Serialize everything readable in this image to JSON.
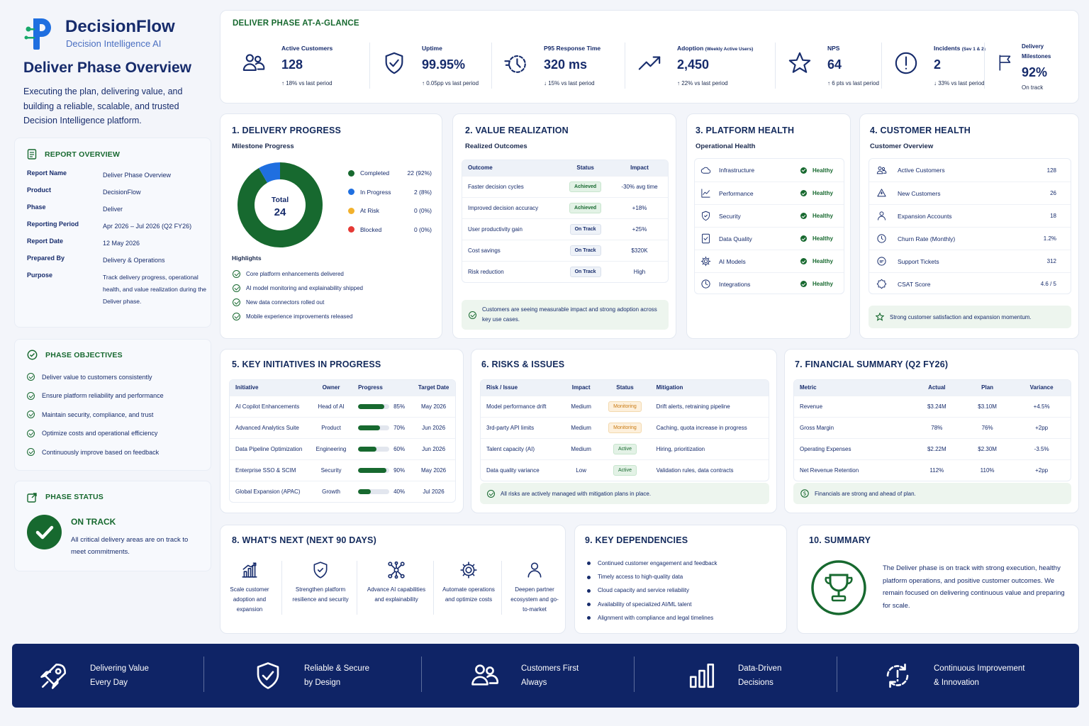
{
  "brand": {
    "name": "DecisionFlow",
    "tagline": "Decision Intelligence AI"
  },
  "page": {
    "title": "Deliver Phase Overview",
    "description": "Executing the plan, delivering value, and building a reliable, scalable, and trusted Decision Intelligence platform."
  },
  "report_overview": {
    "title": "REPORT OVERVIEW",
    "rows": [
      {
        "label": "Report Name",
        "value": "Deliver Phase Overview"
      },
      {
        "label": "Product",
        "value": "DecisionFlow"
      },
      {
        "label": "Phase",
        "value": "Deliver"
      },
      {
        "label": "Reporting Period",
        "value": "Apr 2026 – Jul 2026 (Q2 FY26)"
      },
      {
        "label": "Report Date",
        "value": "12 May 2026"
      },
      {
        "label": "Prepared By",
        "value": "Delivery & Operations"
      },
      {
        "label": "Purpose",
        "value": "Track delivery progress, operational health, and value realization during the Deliver phase."
      }
    ]
  },
  "phase_objectives": {
    "title": "PHASE OBJECTIVES",
    "items": [
      "Deliver value to customers consistently",
      "Ensure platform reliability and performance",
      "Maintain security, compliance, and trust",
      "Optimize costs and operational efficiency",
      "Continuously improve based on feedback"
    ]
  },
  "phase_status": {
    "title": "PHASE STATUS",
    "status": "ON TRACK",
    "text": "All critical delivery areas are on track to meet commitments."
  },
  "glance": {
    "title": "DELIVER PHASE AT-A-GLANCE",
    "kpis": [
      {
        "label": "Active Customers",
        "value": "128",
        "change": "18% vs last period",
        "dir": "up",
        "icon": "users-icon"
      },
      {
        "label": "Uptime",
        "value": "99.95%",
        "change": "0.05pp vs last period",
        "dir": "up",
        "icon": "shield-check-icon"
      },
      {
        "label": "P95 Response Time",
        "value": "320 ms",
        "change": "15% vs last period",
        "dir": "down",
        "icon": "timer-icon"
      },
      {
        "label": "Adoption",
        "label_small": "(Weekly Active Users)",
        "value": "2,450",
        "change": "22% vs last period",
        "dir": "up",
        "icon": "trend-up-icon"
      },
      {
        "label": "NPS",
        "value": "64",
        "change": "6 pts vs last period",
        "dir": "up",
        "icon": "star-icon"
      },
      {
        "label": "Incidents",
        "label_small": "(Sev 1 & 2)",
        "value": "2",
        "change": "33% vs last period",
        "dir": "down",
        "icon": "alert-icon"
      },
      {
        "label": "Delivery Milestones",
        "value": "92%",
        "change": "On track",
        "dir": "",
        "icon": "flag-icon"
      }
    ]
  },
  "delivery_progress": {
    "title": "1. DELIVERY PROGRESS",
    "subtitle": "Milestone Progress",
    "total_label": "Total",
    "total_value": "24",
    "legend": [
      {
        "label": "Completed",
        "value": "22 (92%)",
        "color": "#17692f",
        "count": 22
      },
      {
        "label": "In Progress",
        "value": "2 (8%)",
        "color": "#1f6fe0",
        "count": 2
      },
      {
        "label": "At Risk",
        "value": "0 (0%)",
        "color": "#f2b12c",
        "count": 0
      },
      {
        "label": "Blocked",
        "value": "0 (0%)",
        "color": "#e53935",
        "count": 0
      }
    ],
    "highlights_title": "Highlights",
    "highlights": [
      "Core platform enhancements delivered",
      "AI model monitoring and explainability shipped",
      "New data connectors rolled out",
      "Mobile experience improvements released"
    ]
  },
  "value_realization": {
    "title": "2. VALUE REALIZATION",
    "subtitle": "Realized Outcomes",
    "headers": [
      "Outcome",
      "Status",
      "Impact"
    ],
    "rows": [
      {
        "outcome": "Faster decision cycles",
        "status": "Achieved",
        "impact": "-30% avg time"
      },
      {
        "outcome": "Improved decision accuracy",
        "status": "Achieved",
        "impact": "+18%"
      },
      {
        "outcome": "User productivity gain",
        "status": "On Track",
        "impact": "+25%"
      },
      {
        "outcome": "Cost savings",
        "status": "On Track",
        "impact": "$320K"
      },
      {
        "outcome": "Risk reduction",
        "status": "On Track",
        "impact": "High"
      }
    ],
    "note": "Customers are seeing measurable impact and strong adoption across key use cases."
  },
  "platform_health": {
    "title": "3. PLATFORM HEALTH",
    "subtitle": "Operational Health",
    "items": [
      {
        "label": "Infrastructure",
        "status": "Healthy",
        "icon": "cloud-icon"
      },
      {
        "label": "Performance",
        "status": "Healthy",
        "icon": "chart-line-icon"
      },
      {
        "label": "Security",
        "status": "Healthy",
        "icon": "shield-icon"
      },
      {
        "label": "Data Quality",
        "status": "Healthy",
        "icon": "document-check-icon"
      },
      {
        "label": "AI Models",
        "status": "Healthy",
        "icon": "gear-icon"
      },
      {
        "label": "Integrations",
        "status": "Healthy",
        "icon": "integration-icon"
      }
    ]
  },
  "customer_health": {
    "title": "4. CUSTOMER HEALTH",
    "subtitle": "Customer Overview",
    "items": [
      {
        "label": "Active Customers",
        "value": "128",
        "icon": "users-icon"
      },
      {
        "label": "New Customers",
        "value": "26",
        "icon": "user-plus-icon"
      },
      {
        "label": "Expansion Accounts",
        "value": "18",
        "icon": "user-icon"
      },
      {
        "label": "Churn Rate (Monthly)",
        "value": "1.2%",
        "icon": "clock-icon"
      },
      {
        "label": "Support Tickets",
        "value": "312",
        "icon": "chat-icon"
      },
      {
        "label": "CSAT Score",
        "value": "4.6 / 5",
        "icon": "badge-icon"
      }
    ],
    "note": "Strong customer satisfaction and expansion momentum."
  },
  "initiatives": {
    "title": "5. KEY INITIATIVES IN PROGRESS",
    "headers": [
      "Initiative",
      "Owner",
      "Progress",
      "Target Date"
    ],
    "rows": [
      {
        "name": "AI Copilot Enhancements",
        "owner": "Head of AI",
        "progress": 85,
        "progress_label": "85%",
        "target": "May 2026"
      },
      {
        "name": "Advanced Analytics Suite",
        "owner": "Product",
        "progress": 70,
        "progress_label": "70%",
        "target": "Jun 2026"
      },
      {
        "name": "Data Pipeline Optimization",
        "owner": "Engineering",
        "progress": 60,
        "progress_label": "60%",
        "target": "Jun 2026"
      },
      {
        "name": "Enterprise SSO & SCIM",
        "owner": "Security",
        "progress": 90,
        "progress_label": "90%",
        "target": "May 2026"
      },
      {
        "name": "Global Expansion (APAC)",
        "owner": "Growth",
        "progress": 40,
        "progress_label": "40%",
        "target": "Jul 2026"
      }
    ]
  },
  "risks": {
    "title": "6. RISKS & ISSUES",
    "headers": [
      "Risk / Issue",
      "Impact",
      "Status",
      "Mitigation"
    ],
    "rows": [
      {
        "risk": "Model performance drift",
        "impact": "Medium",
        "status": "Monitoring",
        "mitigation": "Drift alerts, retraining pipeline"
      },
      {
        "risk": "3rd-party API limits",
        "impact": "Medium",
        "status": "Monitoring",
        "mitigation": "Caching, quota increase in progress"
      },
      {
        "risk": "Talent capacity (AI)",
        "impact": "Medium",
        "status": "Active",
        "mitigation": "Hiring, prioritization"
      },
      {
        "risk": "Data quality variance",
        "impact": "Low",
        "status": "Active",
        "mitigation": "Validation rules, data contracts"
      }
    ],
    "note": "All risks are actively managed with mitigation plans in place."
  },
  "financial": {
    "title": "7. FINANCIAL SUMMARY (Q2 FY26)",
    "headers": [
      "Metric",
      "Actual",
      "Plan",
      "Variance"
    ],
    "rows": [
      {
        "metric": "Revenue",
        "actual": "$3.24M",
        "plan": "$3.10M",
        "variance": "+4.5%"
      },
      {
        "metric": "Gross Margin",
        "actual": "78%",
        "plan": "76%",
        "variance": "+2pp"
      },
      {
        "metric": "Operating Expenses",
        "actual": "$2.22M",
        "plan": "$2.30M",
        "variance": "-3.5%"
      },
      {
        "metric": "Net Revenue Retention",
        "actual": "112%",
        "plan": "110%",
        "variance": "+2pp"
      }
    ],
    "note": "Financials are strong and ahead of plan."
  },
  "whats_next": {
    "title": "8. WHAT'S NEXT (NEXT 90 DAYS)",
    "items": [
      {
        "text": "Scale customer adoption and expansion",
        "icon": "bar-growth-icon"
      },
      {
        "text": "Strengthen platform resilience and security",
        "icon": "shield-icon"
      },
      {
        "text": "Advance AI capabilities and explainability",
        "icon": "network-icon"
      },
      {
        "text": "Automate operations and optimize costs",
        "icon": "gear-icon"
      },
      {
        "text": "Deepen partner ecosystem and go-to-market",
        "icon": "user-icon"
      }
    ]
  },
  "dependencies": {
    "title": "9. KEY DEPENDENCIES",
    "items": [
      "Continued customer engagement and feedback",
      "Timely access to high-quality data",
      "Cloud capacity and service reliability",
      "Availability of specialized AI/ML talent",
      "Alignment with compliance and legal timelines"
    ]
  },
  "summary": {
    "title": "10. SUMMARY",
    "text": "The Deliver phase is on track with strong execution, healthy platform operations, and positive customer outcomes. We remain focused on delivering continuous value and preparing for scale."
  },
  "footer": {
    "items": [
      {
        "line1": "Delivering Value",
        "line2": "Every Day",
        "icon": "rocket-icon"
      },
      {
        "line1": "Reliable & Secure",
        "line2": "by Design",
        "icon": "shield-check-icon"
      },
      {
        "line1": "Customers First",
        "line2": "Always",
        "icon": "people-icon"
      },
      {
        "line1": "Data-Driven",
        "line2": "Decisions",
        "icon": "bar-chart-icon"
      },
      {
        "line1": "Continuous Improvement",
        "line2": "& Innovation",
        "icon": "cycle-icon"
      }
    ]
  },
  "colors": {
    "navy": "#172c6c",
    "green": "#17692f",
    "blue": "#1f6fe0",
    "footer_bg": "#0f2466"
  }
}
